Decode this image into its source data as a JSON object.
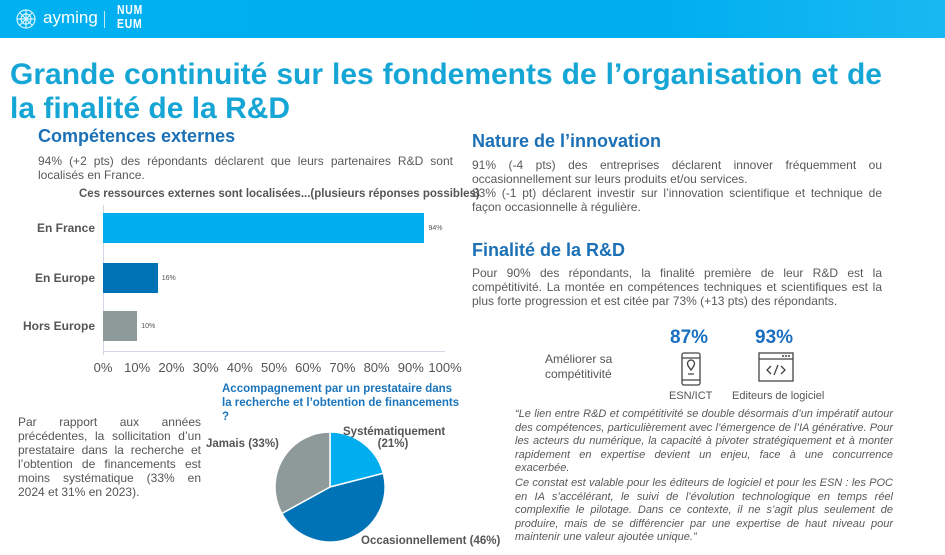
{
  "header": {
    "brand": "ayming",
    "partner": "NUM EUM",
    "bar_color": "#00aeef"
  },
  "title": "Grande continuité sur les fondements de l’organisation et de la finalité de la R&D",
  "competences": {
    "heading": "Compétences externes",
    "text": "94% (+2 pts) des répondants déclarent que leurs partenaires R&D sont localisés en France."
  },
  "chart_data": [
    {
      "type": "bar",
      "orientation": "horizontal",
      "title": "Ces ressources externes sont localisées...(plusieurs réponses possibles)",
      "categories": [
        "En France",
        "En Europe",
        "Hors Europe"
      ],
      "values": [
        94,
        16,
        10
      ],
      "value_labels": [
        "94%",
        "16%",
        "10%"
      ],
      "colors": [
        "#00aeef",
        "#0073b7",
        "#8e9a9a"
      ],
      "xlim": [
        0,
        100
      ],
      "xticks": [
        "0%",
        "10%",
        "20%",
        "30%",
        "40%",
        "50%",
        "60%",
        "70%",
        "80%",
        "90%",
        "100%"
      ]
    },
    {
      "type": "pie",
      "title": "Accompagnement par un prestataire dans la recherche et l’obtention de financements ?",
      "labels": [
        "Systématiquement",
        "Occasionnellement",
        "Jamais"
      ],
      "values": [
        21,
        46,
        33
      ],
      "label_texts": [
        "Systématiquement",
        "(21%)",
        "Occasionnellement (46%)",
        "Jamais (33%)"
      ],
      "colors": [
        "#00aeef",
        "#0073b7",
        "#8e9a9a"
      ]
    }
  ],
  "left_note": "Par rapport aux années précédentes, la sollicitation d’un prestataire dans la recherche et l’obtention de financements est moins systématique (33% en 2024 et 31% en 2023).",
  "nature": {
    "heading": "Nature de l’innovation",
    "p1": "91% (-4 pts) des entreprises déclarent innover fréquemment ou occasionnellement sur leurs produits et/ou services.",
    "p2": "83% (-1 pt) déclarent investir sur l’innovation scientifique et technique de façon occasionnelle à régulière."
  },
  "finalite": {
    "heading": "Finalité de la R&D",
    "text": "Pour 90% des répondants, la finalité première de leur R&D est la compétitivité. La montée en compétences techniques et scientifiques est la plus forte progression et est citée par 73% (+13 pts) des répondants.",
    "row_label": "Améliorer sa compétitivité",
    "items": [
      {
        "pct": "87%",
        "label": "ESN/ICT",
        "icon": "smartphone-location-icon"
      },
      {
        "pct": "93%",
        "label": "Editeurs de logiciel",
        "icon": "code-window-icon"
      }
    ]
  },
  "quote": {
    "p1": "“Le lien entre R&D et compétitivité se double désormais d’un impératif autour des compétences, particulièrement avec l’émergence de l’IA générative. Pour les acteurs du numérique, la capacité à pivoter stratégiquement et à monter rapidement en expertise devient un enjeu, face à une concurrence exacerbée.",
    "p2": "Ce constat est valable pour les éditeurs de logiciel et pour les ESN : les POC en IA s’accélérant, le suivi de l’évolution technologique en temps réel complexifie le pilotage. Dans ce contexte, il ne s’agit plus seulement de produire, mais de se différencier par une expertise de haut niveau pour maintenir une valeur ajoutée unique.”"
  }
}
